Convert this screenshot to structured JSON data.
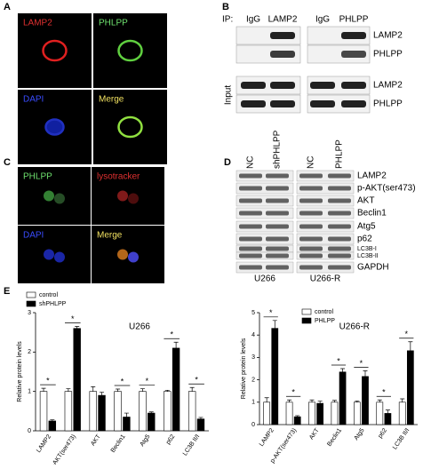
{
  "panels": {
    "a": {
      "label": "A",
      "images": [
        "LAMP2",
        "PHLPP",
        "DAPI",
        "Merge"
      ]
    },
    "b": {
      "label": "B",
      "ip": "IP:",
      "lanes": [
        "IgG",
        "LAMP2",
        "IgG",
        "PHLPP"
      ],
      "rows": [
        "LAMP2",
        "PHLPP",
        "LAMP2",
        "PHLPP"
      ],
      "input": "Input"
    },
    "c": {
      "label": "C",
      "images": [
        "PHLPP",
        "lysotracker",
        "DAPI",
        "Merge"
      ]
    },
    "d": {
      "label": "D",
      "lanes": [
        "NC",
        "shPHLPP",
        "NC",
        "PHLPP"
      ],
      "rows": [
        "LAMP2",
        "p-AKT(ser473)",
        "AKT",
        "Beclin1",
        "Atg5",
        "p62",
        "LC3B-I",
        "LC3B-II",
        "GAPDH"
      ],
      "groups": [
        "U266",
        "U266-R"
      ]
    },
    "e": {
      "label": "E"
    }
  },
  "chart_data": [
    {
      "type": "bar",
      "title": "U266",
      "y_label": "Relative protein levels",
      "categories": [
        "LAMP2",
        "p-AKT(ser473)",
        "AKT",
        "Beclin1",
        "Atg5",
        "p62",
        "LC3B II/I"
      ],
      "series": [
        {
          "name": "control",
          "color": "#ffffff",
          "values": [
            1,
            1,
            1,
            1,
            1,
            1,
            1
          ],
          "errors": [
            0.08,
            0.07,
            0.12,
            0.06,
            0.07,
            0.03,
            0.1
          ]
        },
        {
          "name": "shPHLPP",
          "color": "#000000",
          "values": [
            0.25,
            2.6,
            0.9,
            0.35,
            0.45,
            2.1,
            0.3
          ],
          "errors": [
            0.03,
            0.05,
            0.08,
            0.1,
            0.03,
            0.15,
            0.04
          ]
        }
      ],
      "significance": [
        "*",
        "*",
        null,
        "*",
        "*",
        "*",
        "*"
      ],
      "ylim": [
        0,
        3
      ],
      "yticks": [
        0,
        1,
        2,
        3
      ]
    },
    {
      "type": "bar",
      "title": "U266-R",
      "y_label": "Relative protein levels",
      "categories": [
        "LAMP2",
        "p-AKT(ser473)",
        "AKT",
        "Beclin1",
        "Atg5",
        "p62",
        "LC3B II/I"
      ],
      "series": [
        {
          "name": "control",
          "color": "#ffffff",
          "values": [
            1,
            1,
            1,
            1,
            1,
            1,
            1
          ],
          "errors": [
            0.2,
            0.1,
            0.1,
            0.08,
            0.06,
            0.1,
            0.15
          ]
        },
        {
          "name": "PHLPP",
          "color": "#000000",
          "values": [
            4.3,
            0.35,
            0.95,
            2.35,
            2.15,
            0.5,
            3.3
          ],
          "errors": [
            0.35,
            0.05,
            0.1,
            0.15,
            0.25,
            0.15,
            0.4
          ]
        }
      ],
      "significance": [
        "*",
        "*",
        null,
        "*",
        "*",
        "*",
        "*"
      ],
      "ylim": [
        0,
        5
      ],
      "yticks": [
        0,
        1,
        2,
        3,
        4,
        5
      ]
    }
  ]
}
